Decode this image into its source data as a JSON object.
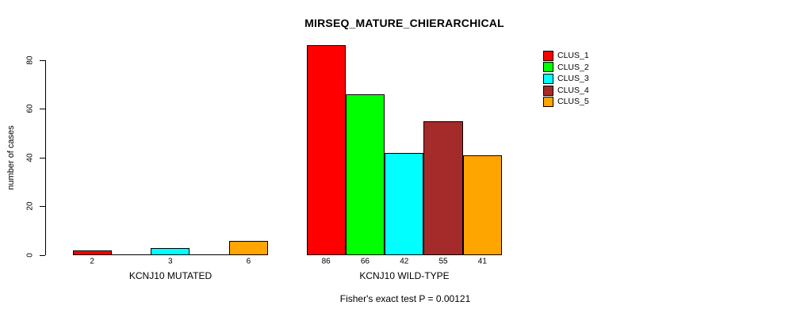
{
  "title": "MIRSEQ_MATURE_CHIERARCHICAL",
  "annotation": "Fisher's exact test P = 0.00121",
  "colors": {
    "background": "#ffffff",
    "axis": "#000000",
    "text": "#000000"
  },
  "chart_data": {
    "type": "bar",
    "title": "MIRSEQ_MATURE_CHIERARCHICAL",
    "xlabel": "",
    "ylabel": "number of cases",
    "ylim": [
      0,
      80
    ],
    "yticks": [
      0,
      20,
      40,
      60,
      80
    ],
    "grid": false,
    "legend_position": "top-right",
    "bar_value_labels": "shown under each non-zero bar",
    "groups": [
      "KCNJ10 MUTATED",
      "KCNJ10 WILD-TYPE"
    ],
    "series": [
      {
        "name": "CLUS_1",
        "color": "#ff0000",
        "values": [
          2,
          86
        ]
      },
      {
        "name": "CLUS_2",
        "color": "#00ff00",
        "values": [
          0,
          66
        ]
      },
      {
        "name": "CLUS_3",
        "color": "#00ffff",
        "values": [
          3,
          42
        ]
      },
      {
        "name": "CLUS_4",
        "color": "#a52a2a",
        "values": [
          0,
          55
        ]
      },
      {
        "name": "CLUS_5",
        "color": "#ffa500",
        "values": [
          6,
          41
        ]
      }
    ],
    "annotation": "Fisher's exact test P = 0.00121"
  }
}
